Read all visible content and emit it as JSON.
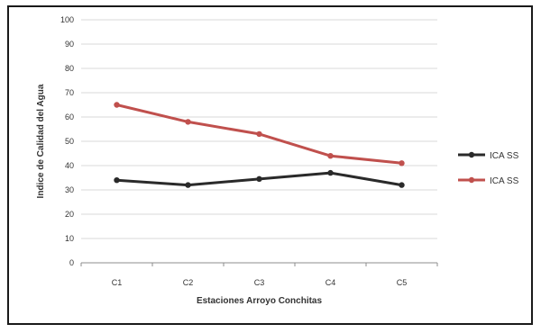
{
  "chart_data": {
    "type": "line",
    "title": "",
    "xlabel": "Estaciones Arroyo Conchitas",
    "ylabel": "Indice de Calidad del Agua",
    "ylim": [
      0,
      100
    ],
    "yticks": [
      "0",
      "10",
      "20",
      "30",
      "40",
      "50",
      "60",
      "70",
      "80",
      "90",
      "100"
    ],
    "categories": [
      "C1",
      "C2",
      "C3",
      "C4",
      "C5"
    ],
    "grid": true,
    "legend_position": "right",
    "series": [
      {
        "name": "ICA SS",
        "color": "#2a2a2a",
        "values": [
          34,
          32,
          34.5,
          37,
          32
        ]
      },
      {
        "name": "ICA SS",
        "color": "#c0504d",
        "values": [
          65,
          58,
          53,
          44,
          41
        ]
      }
    ]
  }
}
